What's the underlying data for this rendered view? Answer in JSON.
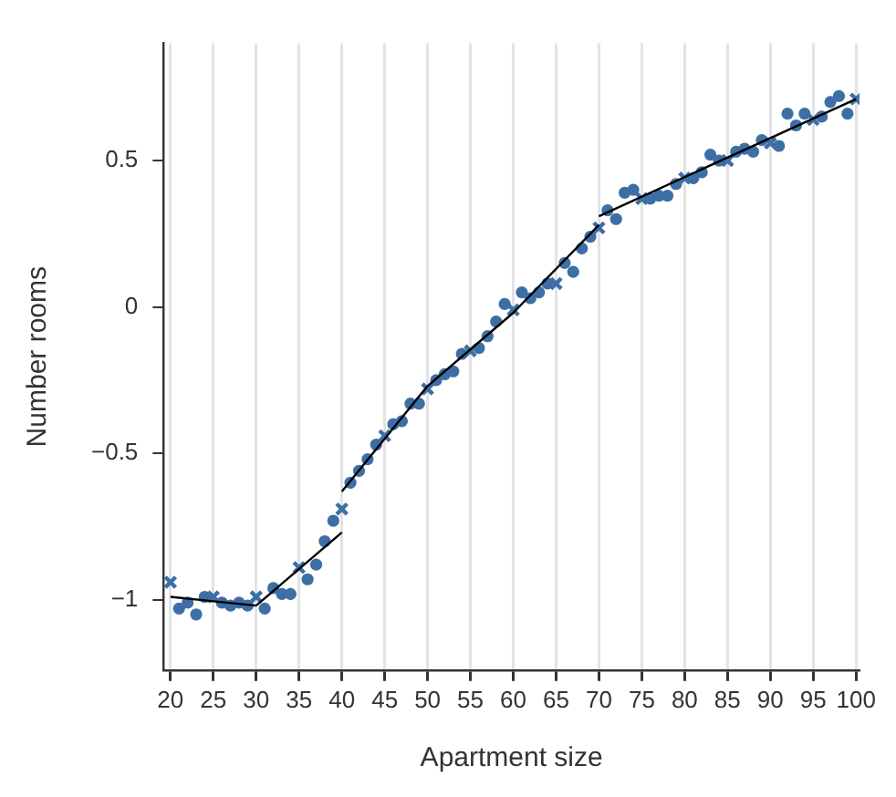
{
  "chart_data": {
    "type": "scatter",
    "xlabel": "Apartment size",
    "ylabel": "Number rooms",
    "xlim": [
      19.2,
      100.4
    ],
    "ylim": [
      -1.24,
      0.9
    ],
    "xticks": [
      20,
      25,
      30,
      35,
      40,
      45,
      50,
      55,
      60,
      65,
      70,
      75,
      80,
      85,
      90,
      95,
      100
    ],
    "yticks": [
      {
        "value": -1,
        "label": "−1"
      },
      {
        "value": -0.5,
        "label": "−0.5"
      },
      0,
      0.5
    ],
    "grid": "x",
    "legend": false,
    "marker": "circle",
    "series": [
      {
        "color": "#3d6fa6",
        "x": [
          21,
          22,
          23,
          24,
          26,
          27,
          28,
          29,
          31,
          32,
          33,
          34,
          36,
          37,
          38,
          39,
          41,
          42,
          43,
          44,
          46,
          47,
          48,
          49,
          51,
          52,
          53,
          54,
          56,
          57,
          58,
          59,
          61,
          62,
          63,
          64,
          66,
          67,
          68,
          69,
          71,
          72,
          73,
          74,
          76,
          77,
          78,
          79,
          81,
          82,
          83,
          84,
          86,
          87,
          88,
          89,
          91,
          92,
          93,
          94,
          96,
          97,
          98,
          99
        ],
        "values": [
          -1.03,
          -1.01,
          -1.05,
          -0.99,
          -1.01,
          -1.02,
          -1.01,
          -1.02,
          -1.03,
          -0.96,
          -0.98,
          -0.98,
          -0.93,
          -0.88,
          -0.8,
          -0.73,
          -0.6,
          -0.56,
          -0.52,
          -0.47,
          -0.4,
          -0.39,
          -0.33,
          -0.33,
          -0.25,
          -0.23,
          -0.22,
          -0.16,
          -0.14,
          -0.1,
          -0.05,
          0.01,
          0.05,
          0.03,
          0.05,
          0.08,
          0.15,
          0.12,
          0.2,
          0.24,
          0.33,
          0.3,
          0.39,
          0.4,
          0.37,
          0.38,
          0.38,
          0.42,
          0.44,
          0.46,
          0.52,
          0.5,
          0.53,
          0.54,
          0.53,
          0.57,
          0.55,
          0.66,
          0.62,
          0.66,
          0.65,
          0.7,
          0.72,
          0.66
        ]
      },
      {
        "color": "#3d6fa6",
        "marker": "cross",
        "x": [
          20,
          25,
          30,
          35,
          40,
          45,
          50,
          55,
          60,
          65,
          70,
          75,
          80,
          85,
          90,
          95,
          100
        ],
        "values": [
          -0.94,
          -0.99,
          -0.99,
          -0.89,
          -0.69,
          -0.44,
          -0.28,
          -0.15,
          -0.01,
          0.08,
          0.27,
          0.37,
          0.44,
          0.5,
          0.56,
          0.64,
          0.71
        ]
      },
      {
        "type": "line",
        "color": "#000000",
        "marker": "none",
        "x": [
          20,
          30
        ],
        "values": [
          -0.99,
          -1.02
        ]
      },
      {
        "type": "line",
        "color": "#000000",
        "marker": "none",
        "x": [
          30,
          40
        ],
        "values": [
          -1.02,
          -0.77
        ]
      },
      {
        "type": "line",
        "color": "#000000",
        "marker": "none",
        "x": [
          40,
          50,
          60,
          70
        ],
        "values": [
          -0.63,
          -0.27,
          -0.02,
          0.28
        ]
      },
      {
        "type": "line",
        "color": "#000000",
        "marker": "none",
        "x": [
          70,
          100
        ],
        "values": [
          0.31,
          0.71
        ]
      }
    ]
  }
}
